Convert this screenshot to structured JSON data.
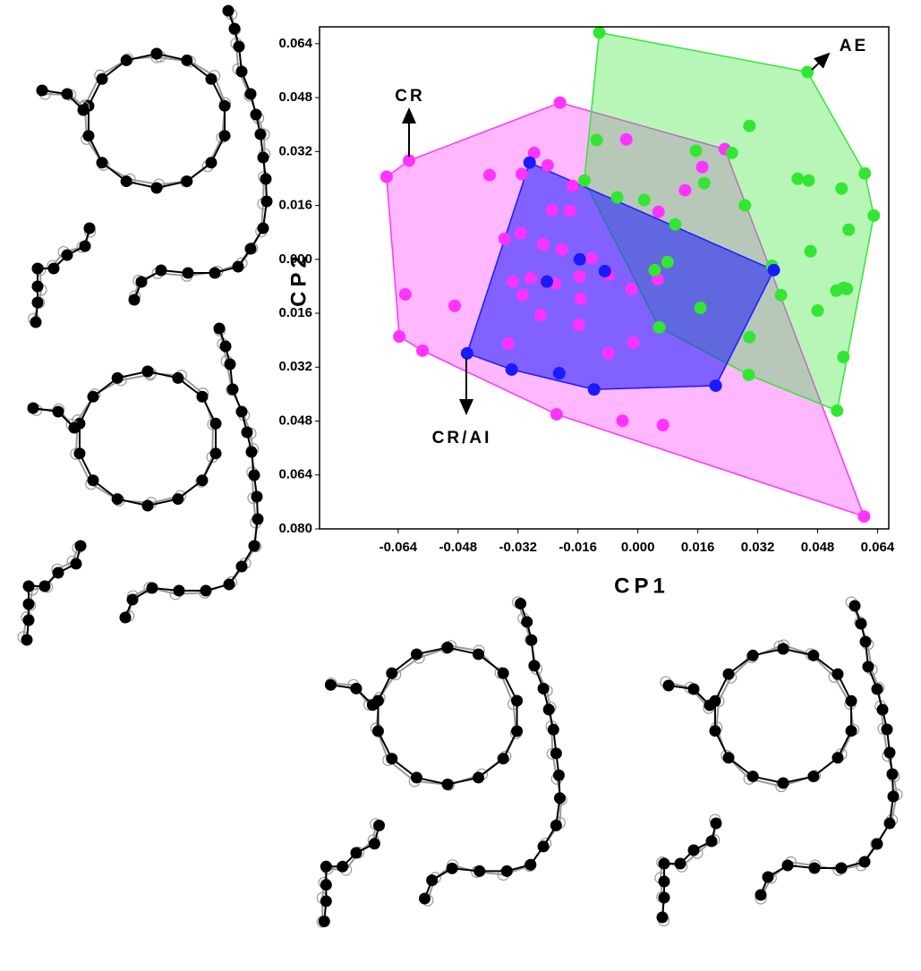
{
  "chart_data": {
    "type": "scatter",
    "xlabel": "CP1",
    "ylabel": "CP2",
    "xlim": [
      -0.085,
      0.067
    ],
    "ylim": [
      -0.08,
      0.069
    ],
    "xticks": [
      -0.064,
      -0.048,
      -0.032,
      -0.016,
      {
        "value": 0,
        "label": "0.000"
      },
      0.016,
      0.032,
      0.048,
      0.064
    ],
    "yticks": [
      0.064,
      0.048,
      0.032,
      0.016,
      {
        "value": 0,
        "label": "0.000"
      },
      {
        "value": -0.016,
        "label": "0.016"
      },
      {
        "value": -0.032,
        "label": "0.032"
      },
      {
        "value": -0.048,
        "label": "0.048"
      },
      {
        "value": -0.064,
        "label": "0.064"
      },
      {
        "value": -0.08,
        "label": "0.080"
      }
    ],
    "hulls": true,
    "series": [
      {
        "name": "CR",
        "color": "#ff33ff",
        "x": [
          -0.0671,
          -0.0611,
          -0.0208,
          0.0232,
          0.0604,
          -0.0637,
          -0.0575,
          -0.0621,
          -0.0489,
          -0.0396,
          -0.0277,
          -0.031,
          -0.0241,
          -0.0174,
          -0.0229,
          -0.0181,
          -0.0356,
          -0.0313,
          -0.0253,
          -0.0203,
          -0.0124,
          -0.0334,
          -0.0308,
          -0.0286,
          -0.0246,
          -0.0222,
          -0.0153,
          -0.026,
          -0.0158,
          -0.0346,
          -0.0079,
          -0.0012,
          -0.0031,
          -0.0017,
          0.0053,
          0.0055,
          0.0126,
          0.0172,
          -0.0217,
          -0.0041,
          0.0067,
          -0.0155,
          -0.0079
        ],
        "y": [
          0.0245,
          0.0293,
          0.0465,
          0.0327,
          -0.0763,
          -0.0229,
          -0.0271,
          -0.0104,
          -0.0138,
          0.025,
          0.0316,
          0.0253,
          0.0279,
          0.0218,
          0.0146,
          0.0144,
          0.0061,
          0.0077,
          0.0045,
          0.0029,
          0.0003,
          -0.0066,
          -0.0106,
          -0.0056,
          -0.0066,
          -0.0072,
          -0.0117,
          -0.0165,
          -0.0194,
          -0.025,
          -0.0279,
          -0.0247,
          0.0356,
          -0.0088,
          -0.0059,
          0.0141,
          0.0205,
          0.0274,
          -0.046,
          -0.0479,
          -0.0492,
          -0.0051,
          -0.0045
        ]
      },
      {
        "name": "CR/AI",
        "color": "#1a1aff",
        "x": [
          -0.0289,
          -0.0155,
          -0.0088,
          -0.0243,
          -0.0456,
          -0.0337,
          -0.021,
          -0.0117,
          0.0208,
          0.0363
        ],
        "y": [
          0.0287,
          0,
          -0.0035,
          -0.0066,
          -0.0279,
          -0.0327,
          -0.0338,
          -0.0386,
          -0.0375,
          -0.0032
        ]
      },
      {
        "name": "AE",
        "color": "#33e633",
        "x": [
          -0.0103,
          0.0453,
          0.0606,
          0.063,
          0.0549,
          0.0532,
          -0.011,
          -0.0143,
          -0.0055,
          0.0017,
          0.01,
          0.0155,
          0.0177,
          0.0251,
          0.0298,
          0.0286,
          0.0079,
          0.0045,
          0.0167,
          0.0057,
          0.0298,
          0.0296,
          0.0382,
          0.0358,
          0.0461,
          0.0427,
          0.0456,
          0.0544,
          0.0563,
          0.053,
          0.0558,
          0.048,
          0.0549
        ],
        "y": [
          0.0673,
          0.0556,
          0.0255,
          0.013,
          -0.0085,
          -0.0449,
          0.0354,
          0.0234,
          0.0184,
          0.0176,
          0.0104,
          0.0322,
          0.0226,
          0.0316,
          0.0396,
          0.016,
          -0.0008,
          -0.0032,
          -0.0144,
          -0.0202,
          -0.0231,
          -0.0343,
          -0.0106,
          -0.0019,
          0.0024,
          0.0239,
          0.0234,
          0.021,
          0.0088,
          -0.0093,
          -0.0088,
          -0.0152,
          -0.029
        ]
      }
    ]
  }
}
